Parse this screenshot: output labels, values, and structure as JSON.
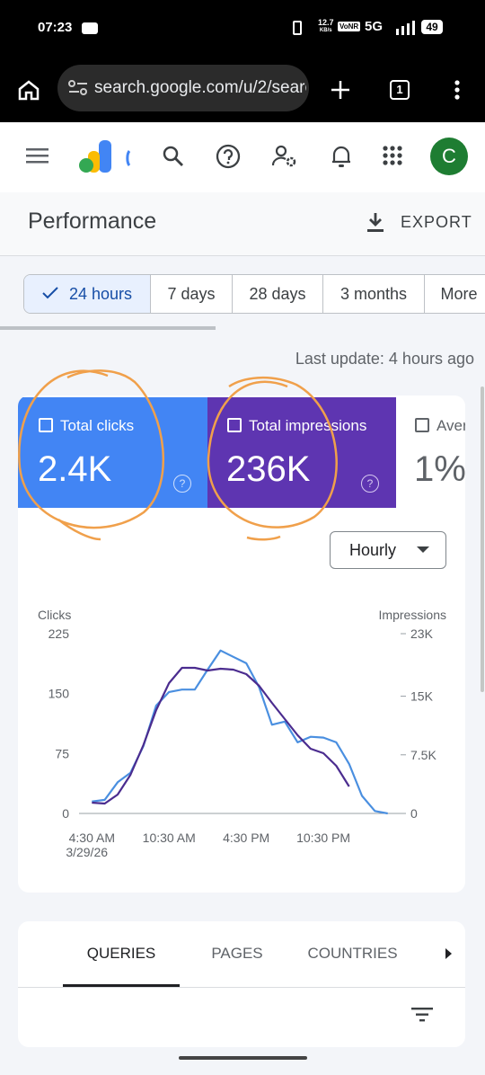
{
  "status_bar": {
    "time": "07:23",
    "speed": "12.7",
    "speed_unit": "KB/s",
    "vonr": "VoNR",
    "network": "5G",
    "battery": "49"
  },
  "browser": {
    "url": "search.google.com/u/2/searc",
    "tab_count": "1"
  },
  "app_bar": {
    "avatar": "C"
  },
  "header": {
    "title": "Performance",
    "export": "EXPORT"
  },
  "date_tabs": [
    "24 hours",
    "7 days",
    "28 days",
    "3 months",
    "More"
  ],
  "last_update": "Last update: 4 hours ago",
  "metrics": [
    {
      "label": "Total clicks",
      "value": "2.4K"
    },
    {
      "label": "Total impressions",
      "value": "236K"
    },
    {
      "label": "Aver",
      "value": "1%"
    }
  ],
  "granularity": "Hourly",
  "chart_data": {
    "type": "line",
    "y_label": "Clicks",
    "y2_label": "Impressions",
    "x": [
      0,
      1,
      2,
      3,
      4,
      5,
      6,
      7,
      8,
      9,
      10,
      11,
      12,
      13,
      14,
      15,
      16,
      17,
      18,
      19,
      20,
      21,
      22,
      23
    ],
    "xlim": [
      -1,
      24
    ],
    "xticks": [
      {
        "value": 0,
        "label": "4:30 AM\n3/29/26"
      },
      {
        "value": 6,
        "label": "10:30 AM"
      },
      {
        "value": 12,
        "label": "4:30 PM"
      },
      {
        "value": 18,
        "label": "10:30 PM"
      }
    ],
    "ylim": [
      0,
      225
    ],
    "yticks": [
      0,
      75,
      150,
      225
    ],
    "y2lim": [
      0,
      23000
    ],
    "y2ticks": [
      0,
      {
        "value": 7500,
        "label": "7.5K"
      },
      {
        "value": 15000,
        "label": "15K"
      },
      {
        "value": 23000,
        "label": "23K"
      }
    ],
    "grid": false,
    "series": [
      {
        "name": "Clicks",
        "color": "#4a8fe0",
        "values": [
          15,
          17,
          39,
          51,
          84,
          135,
          152,
          155,
          155,
          180,
          204,
          196,
          188,
          158,
          111,
          115,
          89,
          96,
          95,
          89,
          62,
          22,
          3,
          0
        ]
      },
      {
        "name": "Impressions",
        "color": "#4b2c8f",
        "axis": "y2",
        "values": [
          1380,
          1265,
          2415,
          4945,
          8740,
          13225,
          16675,
          18630,
          18630,
          18285,
          18515,
          18400,
          17825,
          16330,
          14145,
          12075,
          10005,
          8280,
          7705,
          6095,
          3450,
          null,
          null,
          null
        ]
      }
    ]
  },
  "bottom_tabs": [
    "QUERIES",
    "PAGES",
    "COUNTRIES"
  ]
}
